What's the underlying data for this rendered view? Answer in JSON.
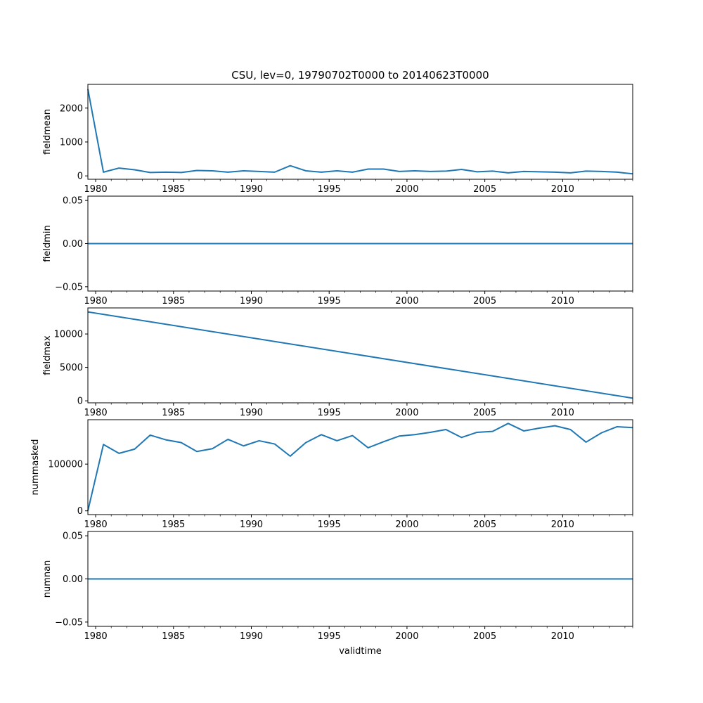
{
  "title": "CSU, lev=0, 19790702T0000 to 20140623T0000",
  "xlabel": "validtime",
  "x_ticks": [
    "1980",
    "1985",
    "1990",
    "1995",
    "2000",
    "2005",
    "2010"
  ],
  "line_color": "#1f77b4",
  "chart_data": [
    {
      "type": "line",
      "ylabel": "fieldmean",
      "xlim": [
        1979.5,
        2014.5
      ],
      "ylim": [
        -100,
        2700
      ],
      "y_ticks": [
        0,
        1000,
        2000
      ],
      "y_tick_labels": [
        "0",
        "1000",
        "2000"
      ],
      "x": [
        1979.5,
        1980.5,
        1981.5,
        1982.5,
        1983.5,
        1984.5,
        1985.5,
        1986.5,
        1987.5,
        1988.5,
        1989.5,
        1990.5,
        1991.5,
        1992.5,
        1993.5,
        1994.5,
        1995.5,
        1996.5,
        1997.5,
        1998.5,
        1999.5,
        2000.5,
        2001.5,
        2002.5,
        2003.5,
        2004.5,
        2005.5,
        2006.5,
        2007.5,
        2008.5,
        2009.5,
        2010.5,
        2011.5,
        2012.5,
        2013.5,
        2014.5
      ],
      "y": [
        2560,
        110,
        230,
        180,
        100,
        110,
        100,
        160,
        150,
        110,
        150,
        130,
        110,
        300,
        150,
        110,
        150,
        110,
        200,
        200,
        130,
        150,
        130,
        140,
        190,
        120,
        140,
        90,
        130,
        120,
        110,
        90,
        140,
        130,
        110,
        60
      ]
    },
    {
      "type": "line",
      "ylabel": "fieldmin",
      "xlim": [
        1979.5,
        2014.5
      ],
      "ylim": [
        -0.055,
        0.055
      ],
      "y_ticks": [
        -0.05,
        0,
        0.05
      ],
      "y_tick_labels": [
        "−0.05",
        "0.00",
        "0.05"
      ],
      "x": [
        1979.5,
        2014.5
      ],
      "y": [
        0,
        0
      ]
    },
    {
      "type": "line",
      "ylabel": "fieldmax",
      "xlim": [
        1979.5,
        2014.5
      ],
      "ylim": [
        -300,
        13900
      ],
      "y_ticks": [
        0,
        5000,
        10000
      ],
      "y_tick_labels": [
        "0",
        "5000",
        "10000"
      ],
      "x": [
        1979.5,
        2014.5
      ],
      "y": [
        13300,
        400
      ]
    },
    {
      "type": "line",
      "ylabel": "nummasked",
      "xlim": [
        1979.5,
        2014.5
      ],
      "ylim": [
        -8000,
        195000
      ],
      "y_ticks": [
        0,
        100000
      ],
      "y_tick_labels": [
        "0",
        "100000"
      ],
      "x": [
        1979.5,
        1980.5,
        1981.5,
        1982.5,
        1983.5,
        1984.5,
        1985.5,
        1986.5,
        1987.5,
        1988.5,
        1989.5,
        1990.5,
        1991.5,
        1992.5,
        1993.5,
        1994.5,
        1995.5,
        1996.5,
        1997.5,
        1998.5,
        1999.5,
        2000.5,
        2001.5,
        2002.5,
        2003.5,
        2004.5,
        2005.5,
        2006.5,
        2007.5,
        2008.5,
        2009.5,
        2010.5,
        2011.5,
        2012.5,
        2013.5,
        2014.5
      ],
      "y": [
        0,
        142000,
        123000,
        132000,
        162000,
        152000,
        146000,
        127000,
        133000,
        153000,
        139000,
        150000,
        143000,
        117000,
        146000,
        163000,
        150000,
        161000,
        135000,
        148000,
        160000,
        163000,
        168000,
        174000,
        157000,
        168000,
        170000,
        187000,
        171000,
        177000,
        182000,
        174000,
        147000,
        167000,
        180000,
        178000
      ]
    },
    {
      "type": "line",
      "ylabel": "numnan",
      "xlim": [
        1979.5,
        2014.5
      ],
      "ylim": [
        -0.055,
        0.055
      ],
      "y_ticks": [
        -0.05,
        0,
        0.05
      ],
      "y_tick_labels": [
        "−0.05",
        "0.00",
        "0.05"
      ],
      "x": [
        1979.5,
        2014.5
      ],
      "y": [
        0,
        0
      ]
    }
  ]
}
